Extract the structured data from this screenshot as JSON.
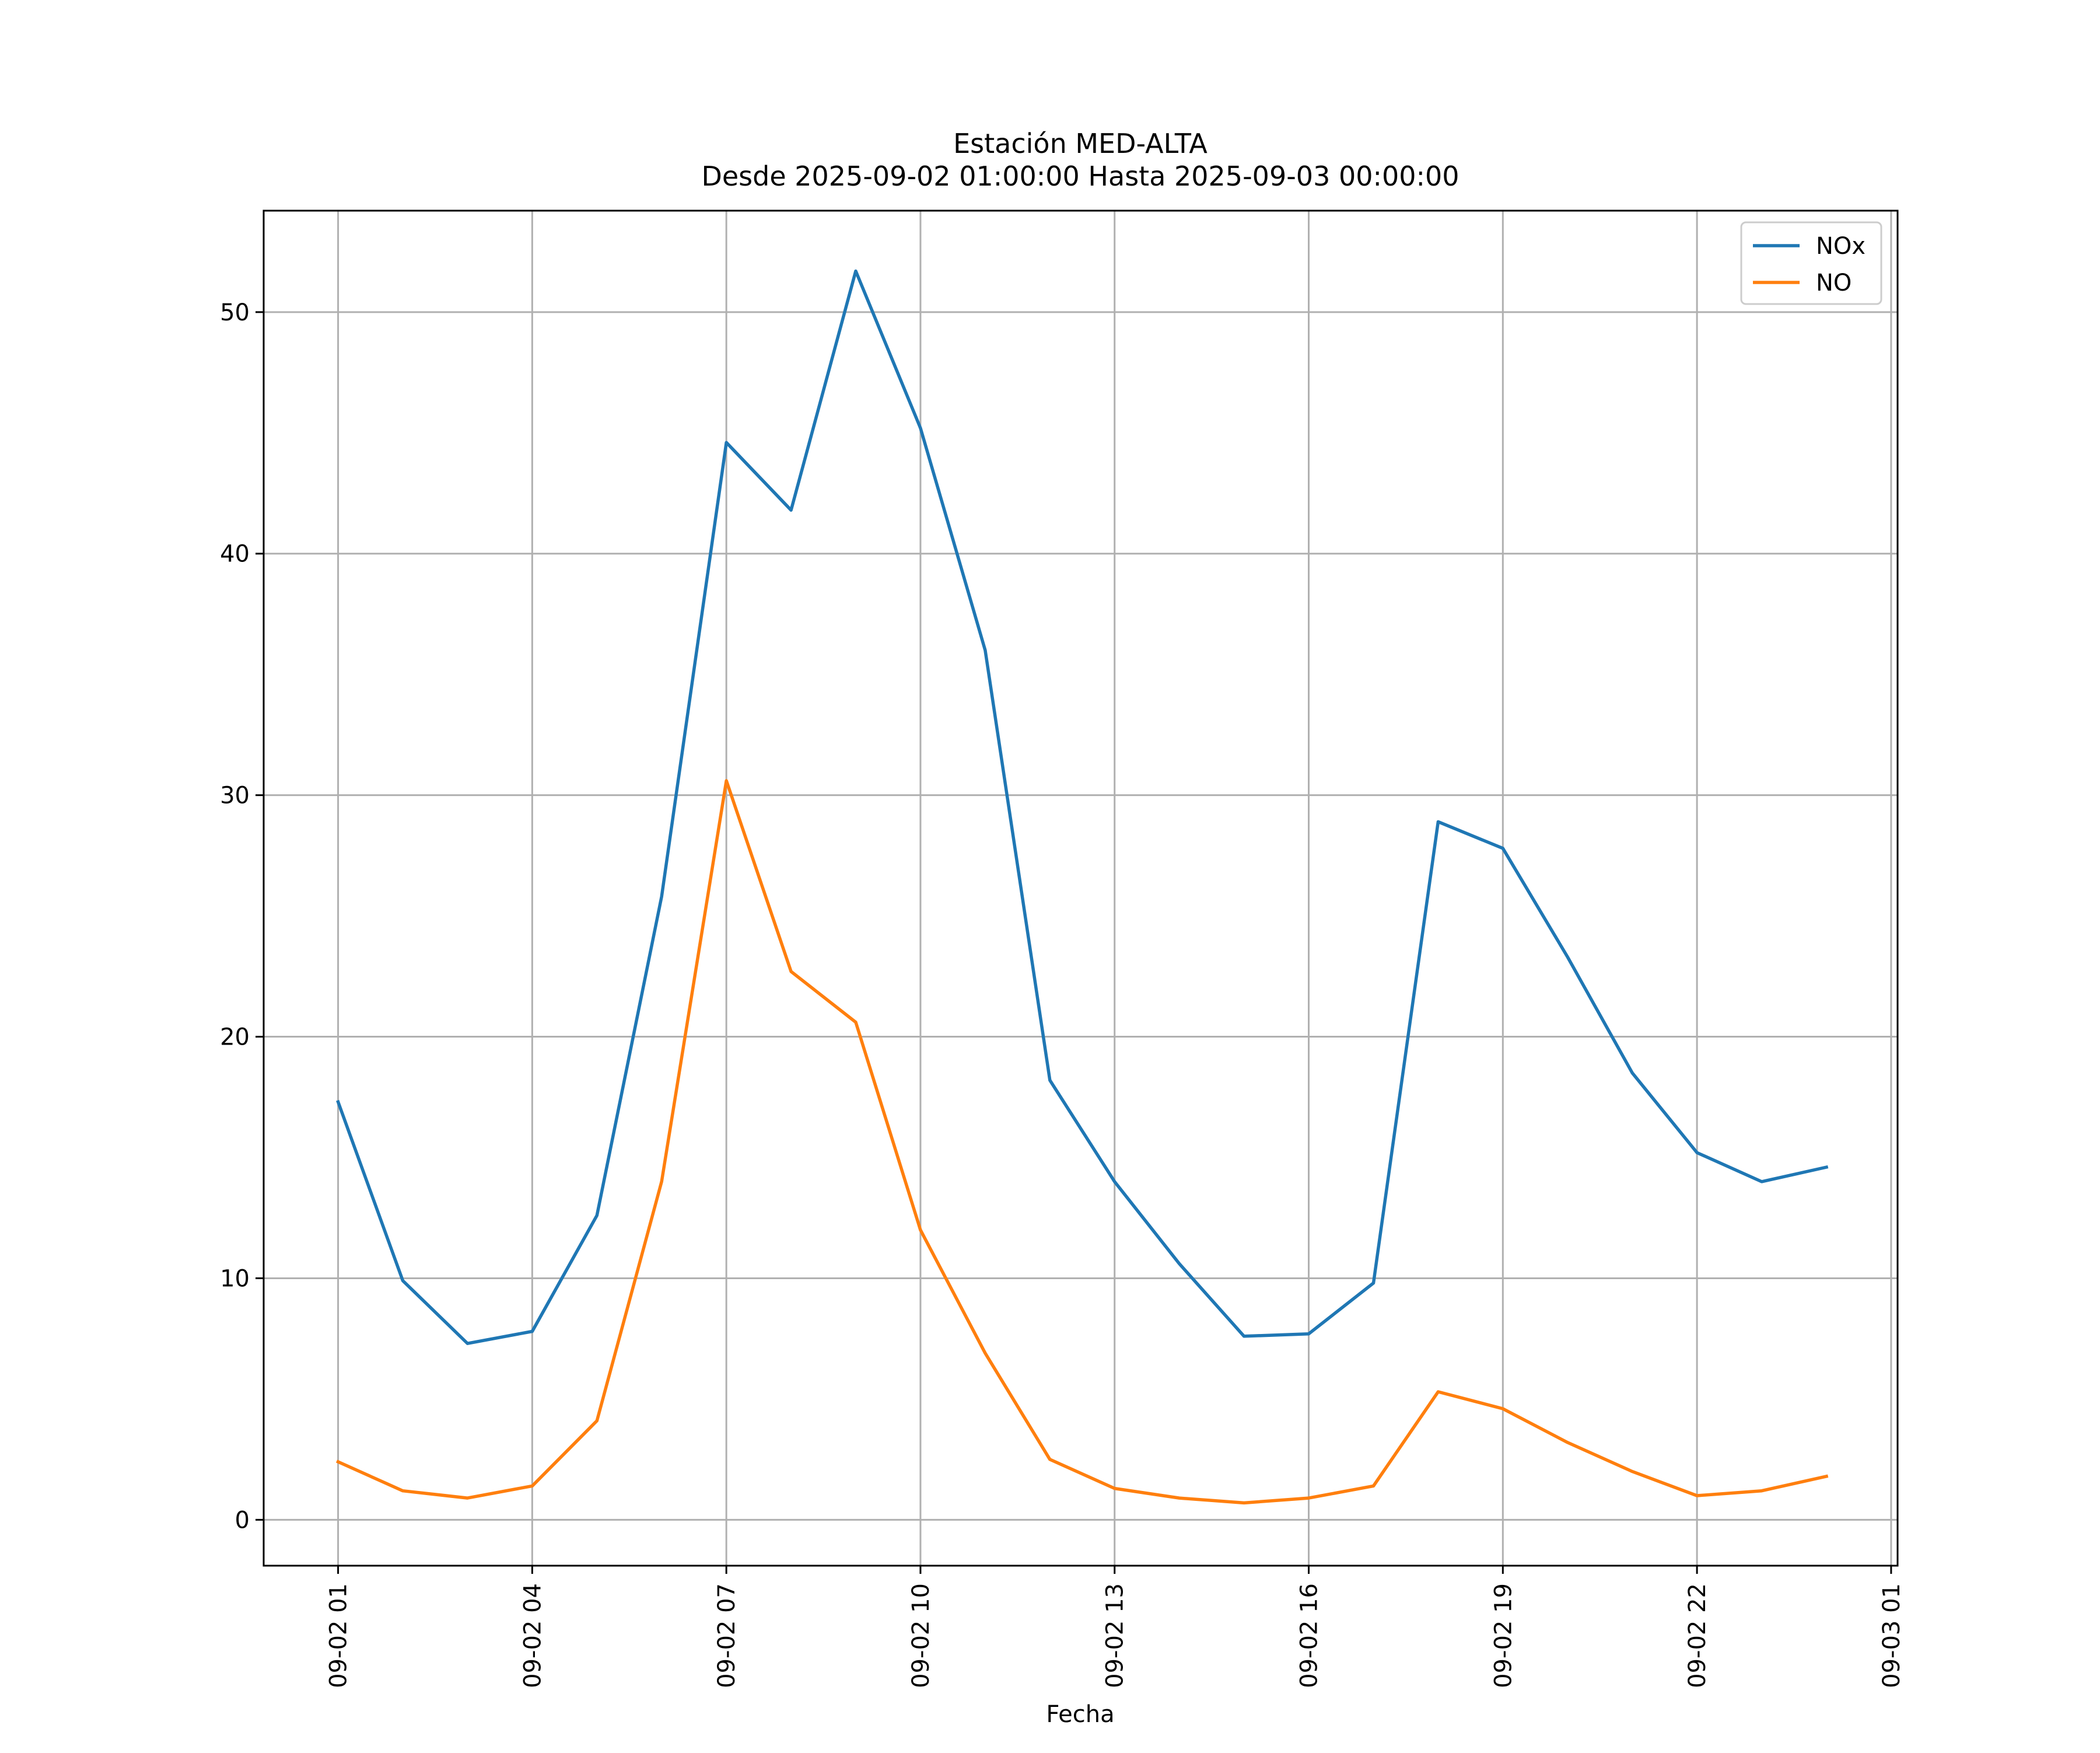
{
  "chart_data": {
    "type": "line",
    "title": "Estación MED-ALTA",
    "subtitle": "Desde 2025-09-02 01:00:00 Hasta 2025-09-03 00:00:00",
    "xlabel": "Fecha",
    "ylabel": "",
    "x": [
      "09-02 01",
      "09-02 02",
      "09-02 03",
      "09-02 04",
      "09-02 05",
      "09-02 06",
      "09-02 07",
      "09-02 08",
      "09-02 09",
      "09-02 10",
      "09-02 11",
      "09-02 12",
      "09-02 13",
      "09-02 14",
      "09-02 15",
      "09-02 16",
      "09-02 17",
      "09-02 18",
      "09-02 19",
      "09-02 20",
      "09-02 21",
      "09-02 22",
      "09-02 23",
      "09-03 00"
    ],
    "x_hours": [
      1,
      2,
      3,
      4,
      5,
      6,
      7,
      8,
      9,
      10,
      11,
      12,
      13,
      14,
      15,
      16,
      17,
      18,
      19,
      20,
      21,
      22,
      23,
      24
    ],
    "xlim": [
      -0.15,
      25.1
    ],
    "x_ticks": [
      {
        "hour": 1,
        "label": "09-02 01"
      },
      {
        "hour": 4,
        "label": "09-02 04"
      },
      {
        "hour": 7,
        "label": "09-02 07"
      },
      {
        "hour": 10,
        "label": "09-02 10"
      },
      {
        "hour": 13,
        "label": "09-02 13"
      },
      {
        "hour": 16,
        "label": "09-02 16"
      },
      {
        "hour": 19,
        "label": "09-02 19"
      },
      {
        "hour": 22,
        "label": "09-02 22"
      },
      {
        "hour": 25,
        "label": "09-03 01"
      }
    ],
    "ylim": [
      -1.9,
      54.2
    ],
    "y_ticks": [
      0,
      10,
      20,
      30,
      40,
      50
    ],
    "grid": true,
    "legend_position": "top-right",
    "series": [
      {
        "name": "NOx",
        "color": "#1f77b4",
        "values": [
          17.3,
          9.9,
          7.3,
          7.8,
          12.6,
          25.8,
          44.6,
          41.8,
          51.7,
          45.2,
          36.0,
          18.2,
          14.0,
          10.6,
          7.6,
          7.7,
          9.8,
          28.9,
          27.8,
          23.3,
          18.5,
          15.2,
          14.0,
          14.6
        ]
      },
      {
        "name": "NO",
        "color": "#ff7f0e",
        "values": [
          2.4,
          1.2,
          0.9,
          1.4,
          4.1,
          14.0,
          30.6,
          22.7,
          20.6,
          12.0,
          6.9,
          2.5,
          1.3,
          0.9,
          0.7,
          0.9,
          1.4,
          5.3,
          4.6,
          3.2,
          2.0,
          1.0,
          1.2,
          1.8
        ]
      }
    ]
  }
}
